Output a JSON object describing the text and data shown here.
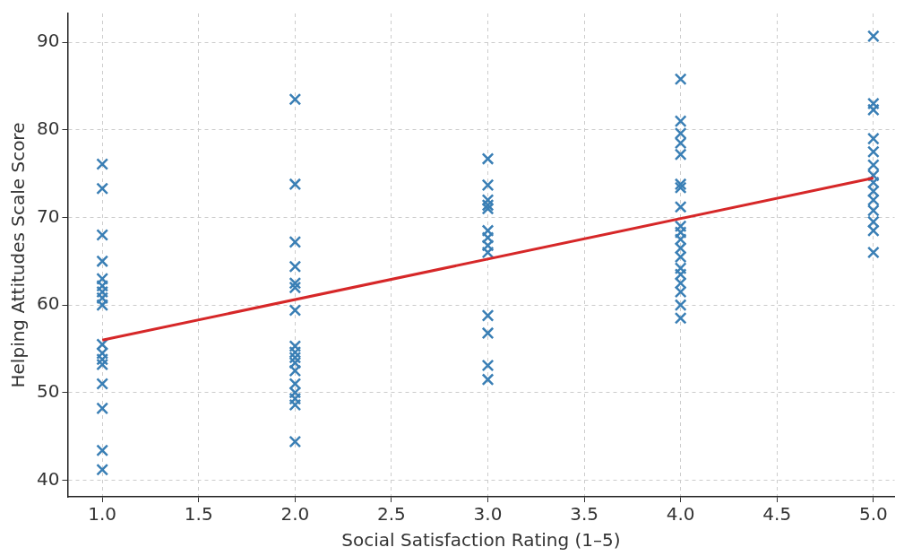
{
  "chart_data": {
    "type": "scatter",
    "xlabel": "Social Satisfaction Rating (1–5)",
    "ylabel": "Helping Attitudes Scale Score",
    "xlim": [
      0.82,
      5.11
    ],
    "ylim": [
      38.1,
      93.3
    ],
    "xticks": [
      {
        "value": 1,
        "label": "1.0"
      },
      {
        "value": 1.5,
        "label": "1.5"
      },
      {
        "value": 2,
        "label": "2.0"
      },
      {
        "value": 2.5,
        "label": "2.5"
      },
      {
        "value": 3,
        "label": "3.0"
      },
      {
        "value": 3.5,
        "label": "3.5"
      },
      {
        "value": 4,
        "label": "4.0"
      },
      {
        "value": 4.5,
        "label": "4.5"
      },
      {
        "value": 5,
        "label": "5.0"
      }
    ],
    "yticks": [
      40,
      50,
      60,
      70,
      80,
      90
    ],
    "grid": true,
    "legend": false,
    "series": [
      {
        "marker": "cross",
        "color": "#3a7fb5",
        "x": [
          1,
          1,
          1,
          1,
          1,
          1,
          1,
          1,
          1,
          1,
          1,
          1,
          1,
          1,
          1,
          1,
          1,
          2,
          2,
          2,
          2,
          2,
          2,
          2,
          2,
          2,
          2,
          2,
          2,
          2,
          2,
          2,
          2,
          2,
          3,
          3,
          3,
          3,
          3,
          3,
          3,
          3,
          3,
          3,
          3,
          3,
          3,
          4,
          4,
          4,
          4,
          4,
          4,
          4,
          4,
          4,
          4,
          4,
          4,
          4,
          4,
          4,
          4,
          4,
          4,
          4,
          5,
          5,
          5,
          5,
          5,
          5,
          5,
          5,
          5,
          5,
          5,
          5,
          5,
          5
        ],
        "values": [
          76.1,
          73.3,
          68.0,
          65.0,
          63.0,
          62.2,
          61.5,
          60.8,
          60.0,
          55.5,
          54.5,
          53.8,
          53.2,
          51.0,
          48.2,
          43.4,
          41.2,
          83.5,
          73.8,
          67.2,
          64.4,
          62.5,
          62.0,
          59.4,
          55.3,
          54.6,
          54.0,
          53.4,
          52.5,
          51.0,
          50.0,
          49.3,
          48.6,
          44.4,
          76.7,
          73.7,
          72.0,
          71.4,
          71.0,
          68.5,
          67.7,
          66.8,
          66.0,
          58.8,
          56.8,
          53.1,
          51.5,
          85.8,
          81.0,
          79.6,
          78.5,
          77.2,
          73.8,
          73.4,
          71.2,
          69.0,
          68.3,
          67.5,
          66.5,
          65.5,
          64.2,
          63.5,
          62.5,
          61.5,
          60.0,
          58.5,
          90.7,
          83.0,
          82.3,
          79.0,
          77.5,
          76.0,
          74.8,
          74.0,
          73.0,
          72.0,
          70.8,
          69.5,
          68.5,
          66.0
        ]
      },
      {
        "type": "line",
        "marker": "none",
        "color": "#d62728",
        "x": [
          1,
          5
        ],
        "values": [
          56.0,
          74.5
        ]
      }
    ]
  }
}
